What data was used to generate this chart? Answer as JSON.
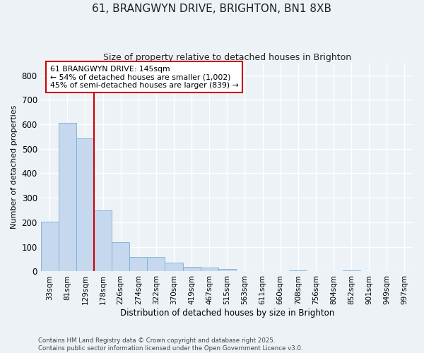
{
  "title_line1": "61, BRANGWYN DRIVE, BRIGHTON, BN1 8XB",
  "title_line2": "Size of property relative to detached houses in Brighton",
  "xlabel": "Distribution of detached houses by size in Brighton",
  "ylabel": "Number of detached properties",
  "categories": [
    "33sqm",
    "81sqm",
    "129sqm",
    "178sqm",
    "226sqm",
    "274sqm",
    "322sqm",
    "370sqm",
    "419sqm",
    "467sqm",
    "515sqm",
    "563sqm",
    "611sqm",
    "660sqm",
    "708sqm",
    "756sqm",
    "804sqm",
    "852sqm",
    "901sqm",
    "949sqm",
    "997sqm"
  ],
  "values": [
    203,
    607,
    543,
    248,
    120,
    60,
    58,
    35,
    20,
    17,
    10,
    0,
    0,
    0,
    5,
    0,
    0,
    4,
    0,
    0,
    0
  ],
  "bar_color": "#c5d8ee",
  "bar_edge_color": "#7aafd4",
  "vline_color": "#cc0000",
  "annotation_title": "61 BRANGWYN DRIVE: 145sqm",
  "annotation_line1": "← 54% of detached houses are smaller (1,002)",
  "annotation_line2": "45% of semi-detached houses are larger (839) →",
  "annotation_box_color": "#ffffff",
  "annotation_box_edge": "#cc0000",
  "ylim": [
    0,
    850
  ],
  "yticks": [
    0,
    100,
    200,
    300,
    400,
    500,
    600,
    700,
    800
  ],
  "footer_line1": "Contains HM Land Registry data © Crown copyright and database right 2025.",
  "footer_line2": "Contains public sector information licensed under the Open Government Licence v3.0.",
  "bg_color": "#edf2f7",
  "grid_color": "#ffffff"
}
